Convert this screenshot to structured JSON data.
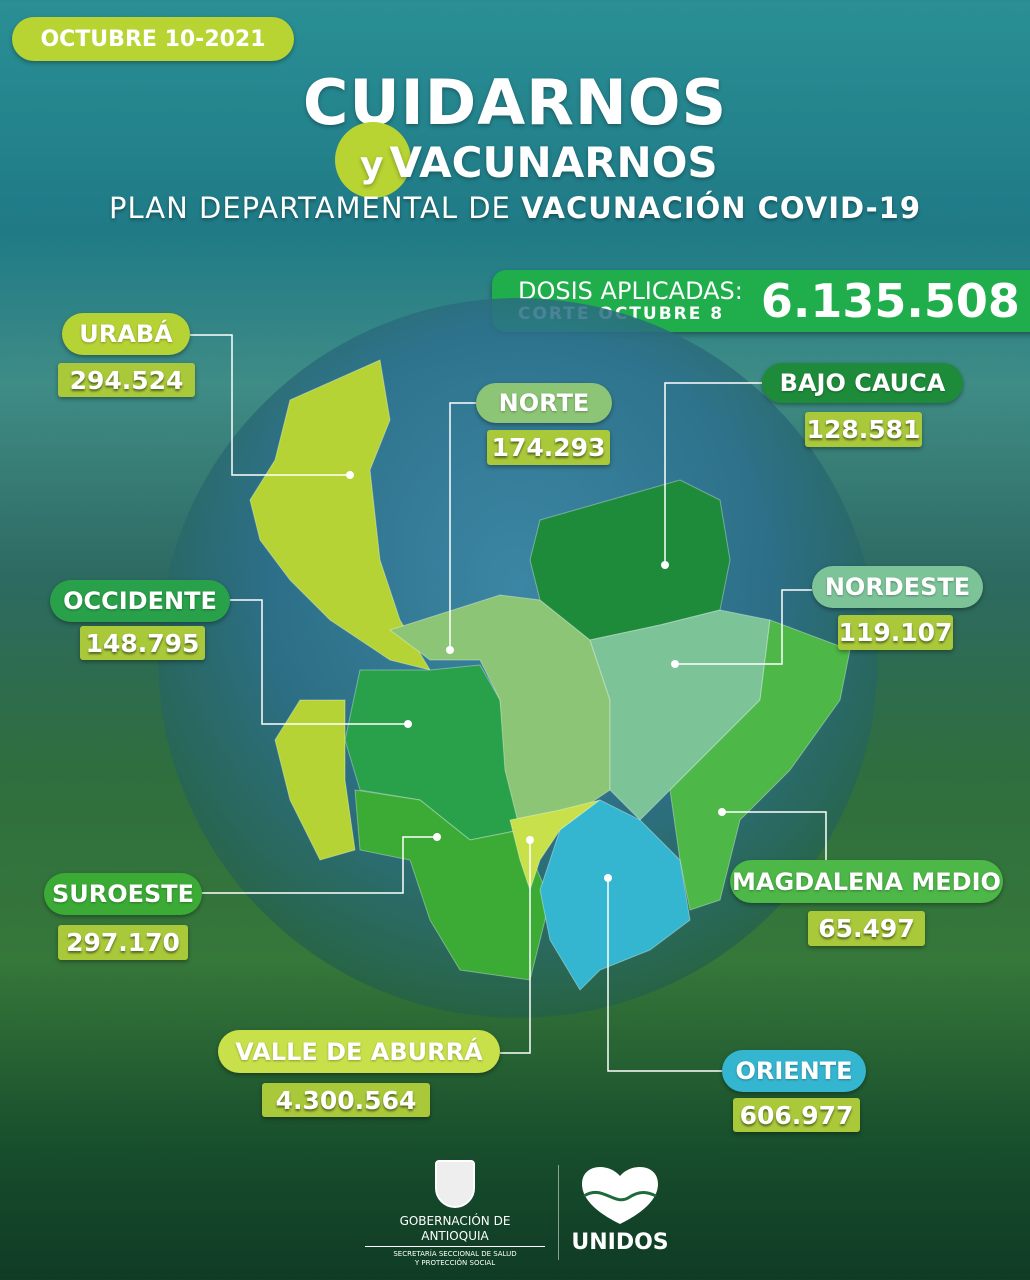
{
  "date": "OCTUBRE 10-2021",
  "title": {
    "line1": "CUIDARNOS",
    "y": "y",
    "line2": "VACUNARNOS",
    "subtitle_normal": "PLAN DEPARTAMENTAL DE ",
    "subtitle_bold": "VACUNACIÓN COVID-19"
  },
  "total": {
    "label": "DOSIS APLICADAS:",
    "cut": "CORTE OCTUBRE 8",
    "value": "6.135.508"
  },
  "regions": [
    {
      "name": "URABÁ",
      "value": "294.524",
      "color": "#b5d334"
    },
    {
      "name": "NORTE",
      "value": "174.293",
      "color": "#8cc575"
    },
    {
      "name": "BAJO CAUCA",
      "value": "128.581",
      "color": "#1e8b3b"
    },
    {
      "name": "OCCIDENTE",
      "value": "148.795",
      "color": "#29a04a"
    },
    {
      "name": "NORDESTE",
      "value": "119.107",
      "color": "#7cc498"
    },
    {
      "name": "SUROESTE",
      "value": "297.170",
      "color": "#3bab36"
    },
    {
      "name": "MAGDALENA MEDIO",
      "value": "65.497",
      "color": "#4db748"
    },
    {
      "name": "VALLE  DE ABURRÁ",
      "value": "4.300.564",
      "color": "#c8e04a"
    },
    {
      "name": "ORIENTE",
      "value": "606.977",
      "color": "#35b6d0"
    }
  ],
  "footer": {
    "gob": "GOBERNACIÓN DE ANTIOQUIA",
    "sec1": "SECRETARÍA SECCIONAL DE SALUD",
    "sec2": "Y PROTECCIÓN SOCIAL",
    "unidos": "UNIDOS"
  }
}
